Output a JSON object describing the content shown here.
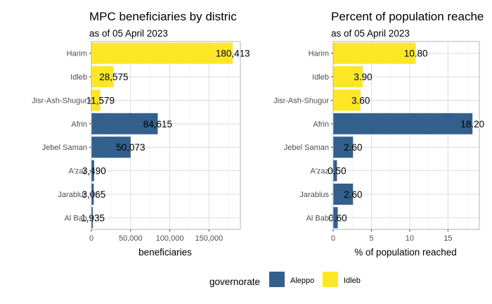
{
  "colors": {
    "Aleppo": "#33608c",
    "Idleb": "#fde725",
    "grid": "#dcdcdc",
    "panel_border": "#b3b3b3"
  },
  "legend": {
    "title": "governorate",
    "items": [
      "Aleppo",
      "Idleb"
    ],
    "position": "bottom"
  },
  "chart_data": [
    {
      "type": "bar",
      "orientation": "horizontal",
      "title": "MPC beneficiaries by distric",
      "subtitle": "as of 05 April 2023",
      "xlabel": "beneficiaries",
      "ylabel": "",
      "xlim": [
        0,
        190000
      ],
      "ticks": [
        0,
        50000,
        100000,
        150000
      ],
      "tick_labels": [
        "0",
        "50,000",
        "100,000",
        "150,000"
      ],
      "categories": [
        "Harim",
        "Idleb",
        "Jisr-Ash-Shugur",
        "Afrin",
        "Jebel Saman",
        "A'zaz",
        "Jarablus",
        "Al Bab"
      ],
      "values": [
        180413,
        28575,
        11579,
        84615,
        50073,
        3490,
        3065,
        1935
      ],
      "value_labels": [
        "180,413",
        "28,575",
        "11,579",
        "84,615",
        "50,073",
        "3,490",
        "3,065",
        "1,935"
      ],
      "groups": [
        "Idleb",
        "Idleb",
        "Idleb",
        "Aleppo",
        "Aleppo",
        "Aleppo",
        "Aleppo",
        "Aleppo"
      ],
      "grid": true
    },
    {
      "type": "bar",
      "orientation": "horizontal",
      "title": "Percent of population reache",
      "subtitle": "as of 05 April 2023",
      "xlabel": "% of population reached",
      "ylabel": "",
      "xlim": [
        0,
        19.1
      ],
      "ticks": [
        0,
        5,
        10,
        15
      ],
      "tick_labels": [
        "0",
        "5",
        "10",
        "15"
      ],
      "categories": [
        "Harim",
        "Idleb",
        "Jisr-Ash-Shugur",
        "Afrin",
        "Jebel Saman",
        "A'zaz",
        "Jarablus",
        "Al Bab"
      ],
      "values": [
        10.8,
        3.9,
        3.6,
        18.2,
        2.6,
        0.5,
        2.6,
        0.6
      ],
      "value_labels": [
        "10.80",
        "3.90",
        "3.60",
        "18.20",
        "2.60",
        "0.50",
        "2.60",
        "0.60"
      ],
      "groups": [
        "Idleb",
        "Idleb",
        "Idleb",
        "Aleppo",
        "Aleppo",
        "Aleppo",
        "Aleppo",
        "Aleppo"
      ],
      "grid": true
    }
  ]
}
